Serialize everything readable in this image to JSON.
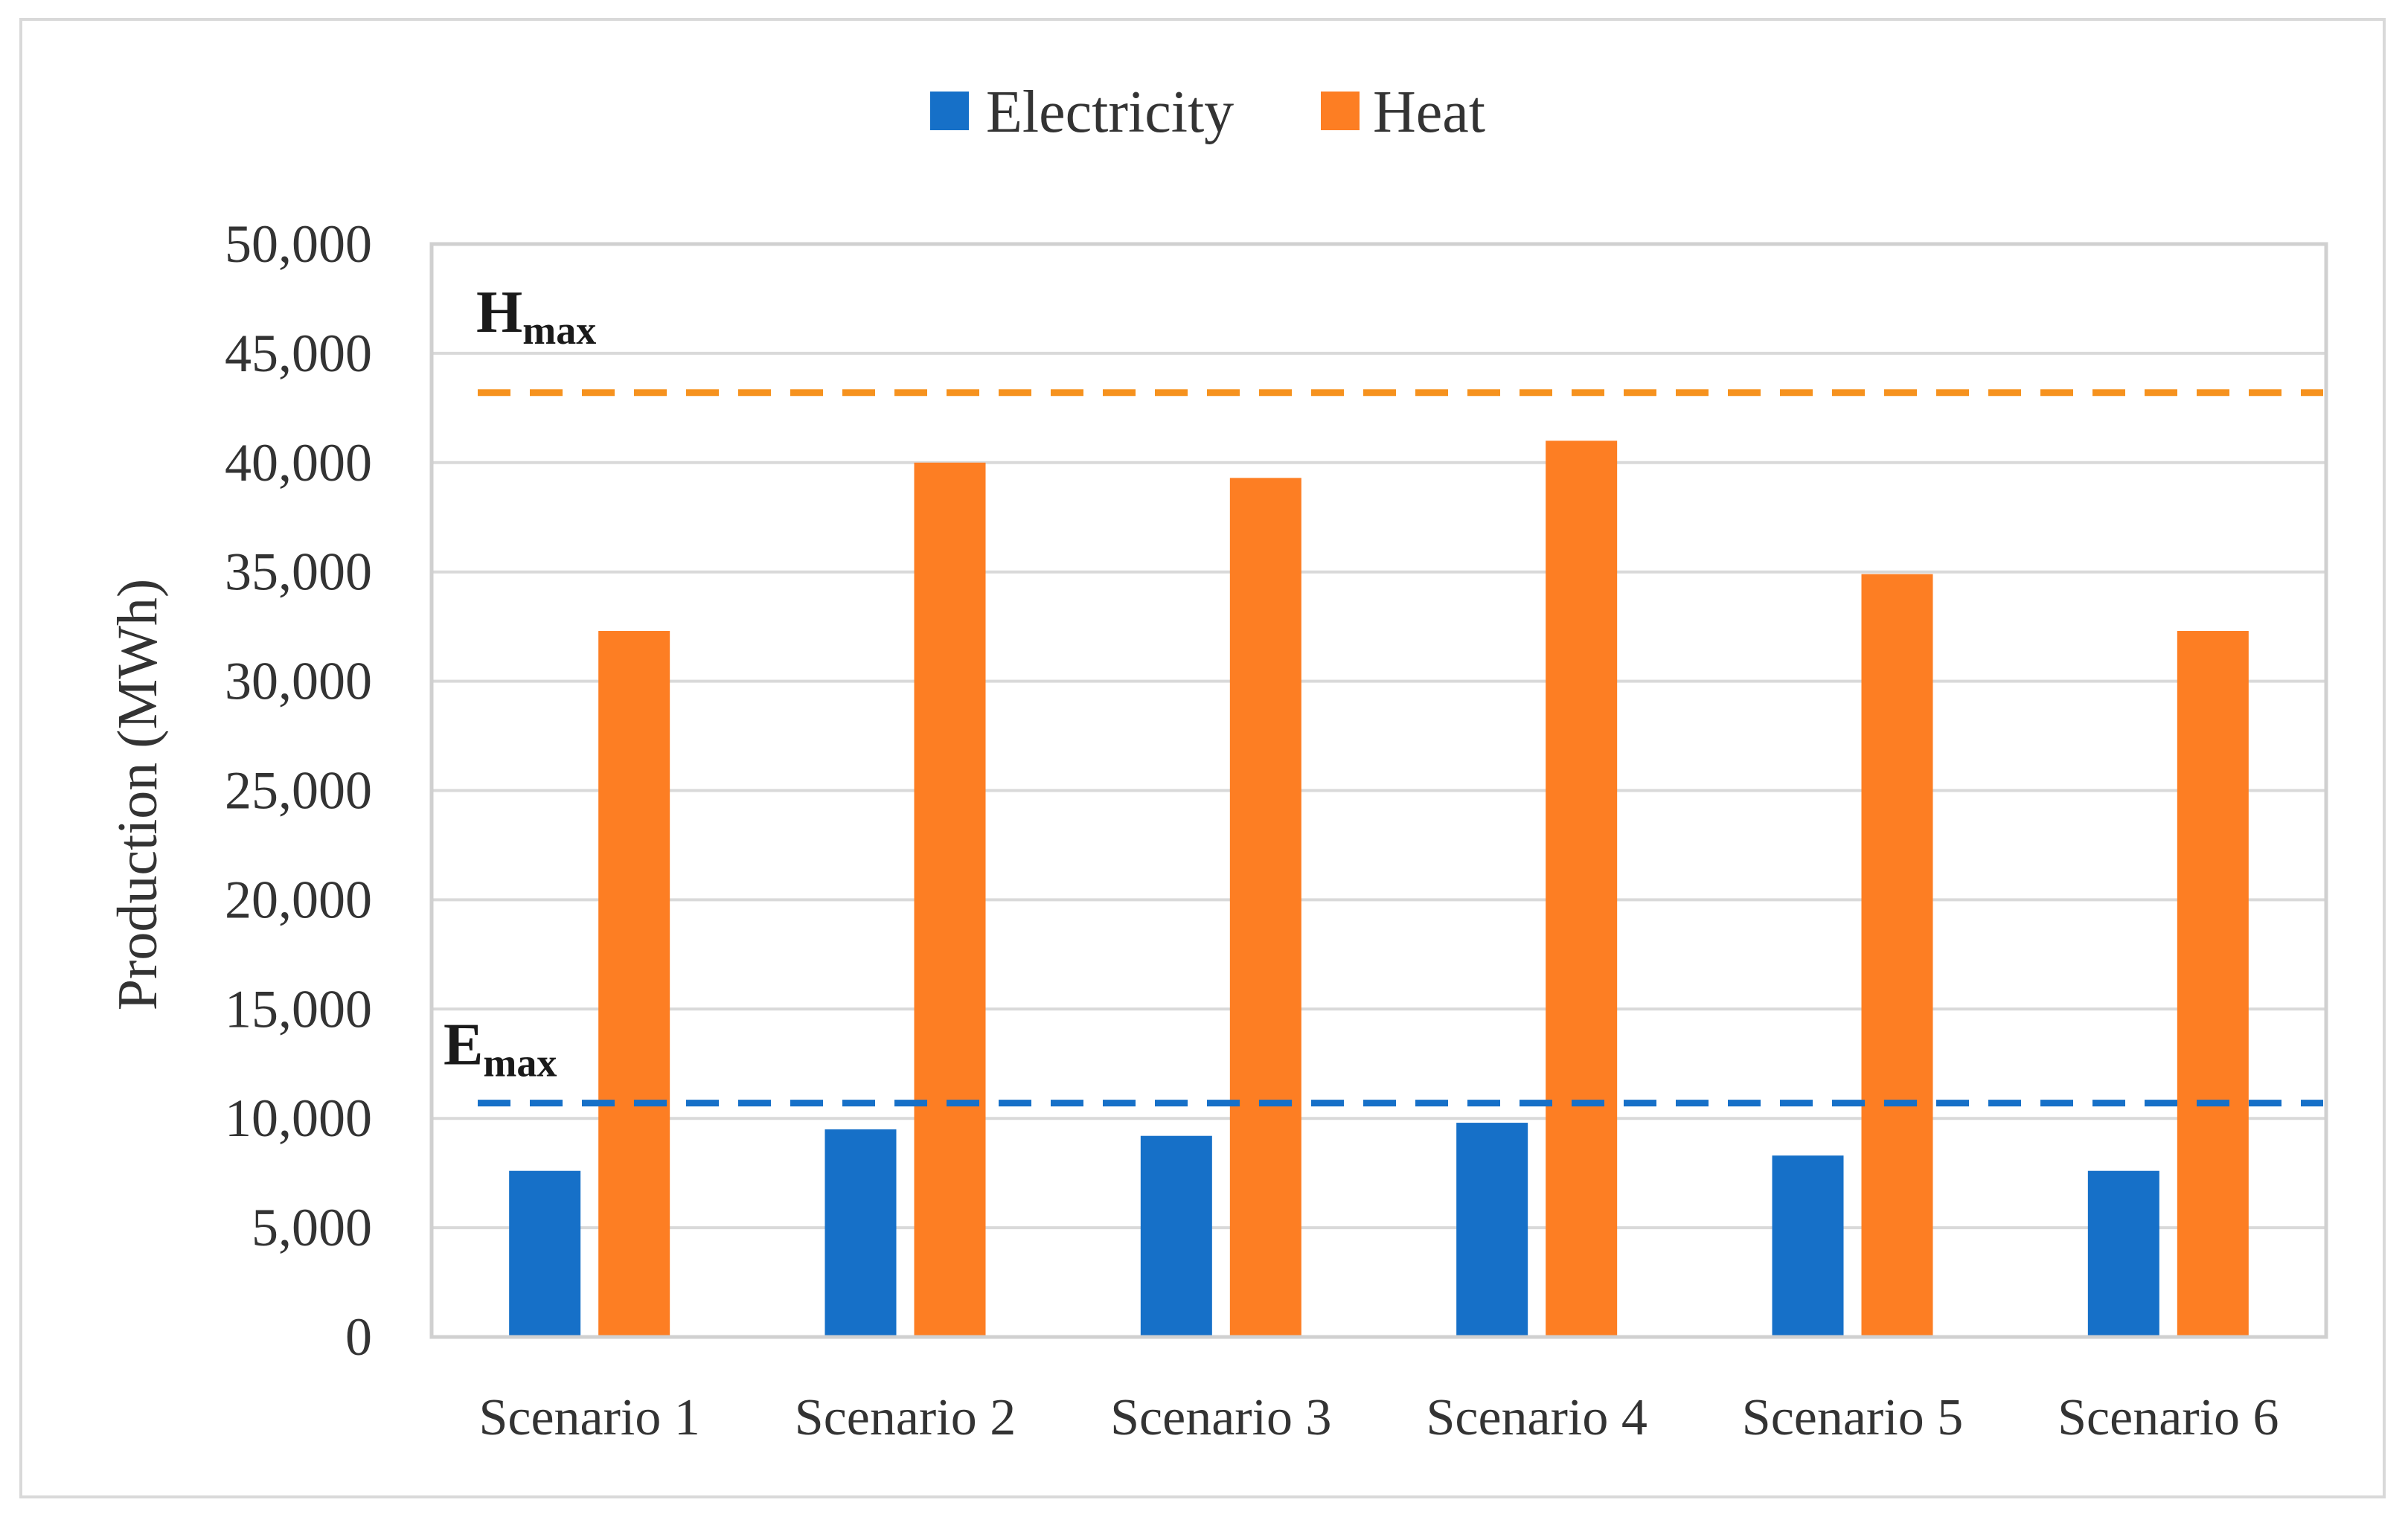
{
  "chart_data": {
    "type": "bar",
    "title": "",
    "xlabel": "",
    "ylabel": "Production (MWh)",
    "ylim": [
      0,
      50000
    ],
    "yticks": [
      0,
      5000,
      10000,
      15000,
      20000,
      25000,
      30000,
      35000,
      40000,
      45000,
      50000
    ],
    "ytick_labels": [
      "0",
      "5,000",
      "10,000",
      "15,000",
      "20,000",
      "25,000",
      "30,000",
      "35,000",
      "40,000",
      "45,000",
      "50,000"
    ],
    "grid": true,
    "legend_position": "top-center",
    "categories": [
      "Scenario 1",
      "Scenario 2",
      "Scenario 3",
      "Scenario 4",
      "Scenario 5",
      "Scenario 6"
    ],
    "series": [
      {
        "name": "Electricity",
        "color": "#1670c8",
        "values": [
          7600,
          9500,
          9200,
          9800,
          8300,
          7600
        ]
      },
      {
        "name": "Heat",
        "color": "#fd7e23",
        "values": [
          32300,
          40000,
          39300,
          41000,
          34900,
          32300
        ]
      }
    ],
    "reference_lines": [
      {
        "id": "hmax",
        "main": "H",
        "sub": "max",
        "value": 43200,
        "color": "#f6921e",
        "style": "dashed"
      },
      {
        "id": "emax",
        "main": "E",
        "sub": "max",
        "value": 10700,
        "color": "#1670c8",
        "style": "dashed"
      }
    ]
  }
}
